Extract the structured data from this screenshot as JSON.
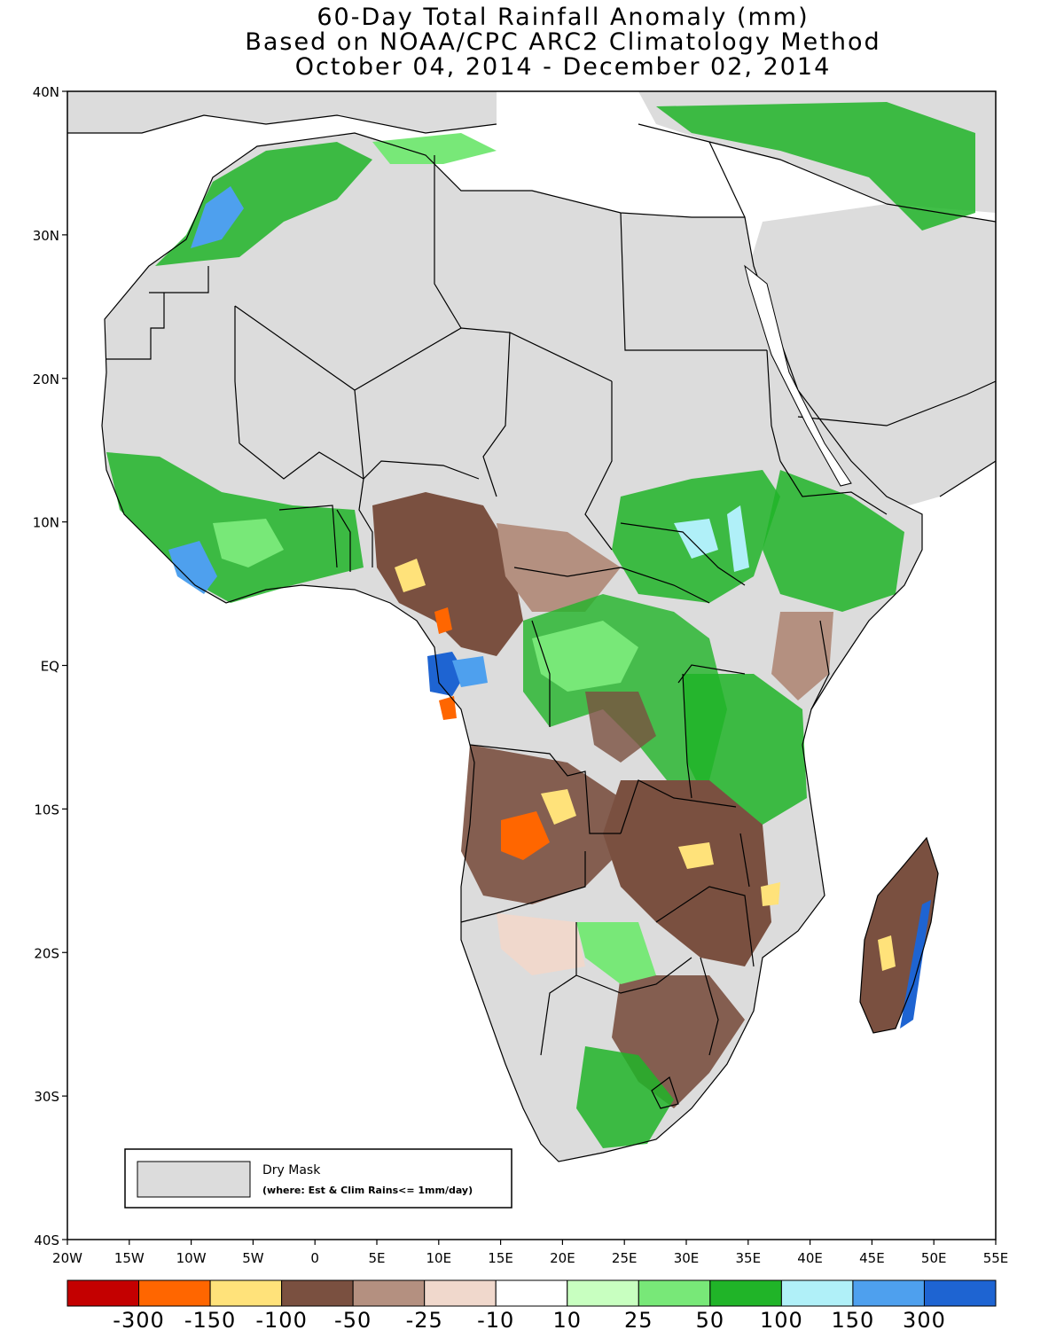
{
  "title": {
    "line1": "60-Day Total Rainfall Anomaly (mm)",
    "line2": "Based on NOAA/CPC ARC2 Climatology Method",
    "line3": "October 04, 2014 - December 02, 2014"
  },
  "lat_ticks": [
    "40N",
    "30N",
    "20N",
    "10N",
    "EQ",
    "10S",
    "20S",
    "30S",
    "40S"
  ],
  "lon_ticks": [
    "20W",
    "15W",
    "10W",
    "5W",
    "0",
    "5E",
    "10E",
    "15E",
    "20E",
    "25E",
    "30E",
    "35E",
    "40E",
    "45E",
    "50E",
    "55E"
  ],
  "dry_mask_legend": {
    "label": "Dry Mask",
    "note": "(where: Est & Clim Rains<= 1mm/day)",
    "color": "#dcdcdc"
  },
  "colorbar": {
    "colors": [
      "#c40000",
      "#ff6600",
      "#ffe27a",
      "#7a5040",
      "#b49080",
      "#f0d8cc",
      "#ffffff",
      "#c8ffc0",
      "#78e878",
      "#20b428",
      "#b0f0f8",
      "#4ea0ee",
      "#1e64d2"
    ],
    "labels": [
      "-300",
      "-150",
      "-100",
      "-50",
      "-25",
      "-10",
      "10",
      "25",
      "50",
      "100",
      "150",
      "300"
    ]
  },
  "colors": {
    "dry_mask": "#dcdcdc",
    "sea": "#ffffff",
    "border": "#000000"
  }
}
